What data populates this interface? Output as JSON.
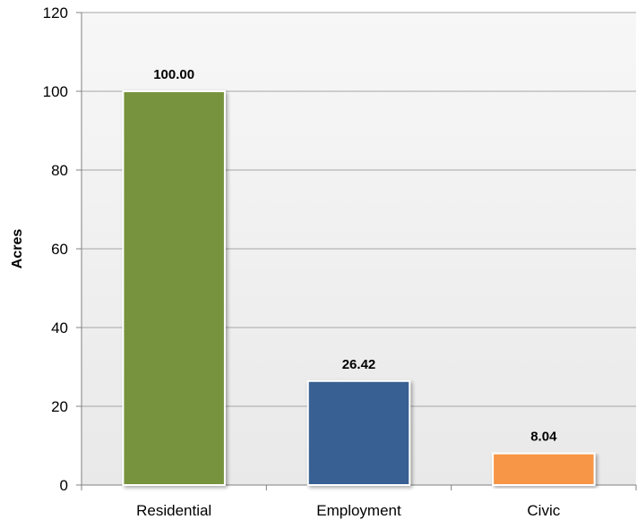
{
  "chart_data": {
    "type": "bar",
    "title": "",
    "xlabel": "",
    "ylabel": "Acres",
    "ylim": [
      0,
      120
    ],
    "yticks": [
      0,
      20,
      40,
      60,
      80,
      100,
      120
    ],
    "grid": true,
    "legend": "none",
    "categories": [
      "Residential",
      "Employment",
      "Civic"
    ],
    "values": [
      100.0,
      26.42,
      8.04
    ],
    "data_labels": [
      "100.00",
      "26.42",
      "8.04"
    ],
    "bar_colors": [
      "#77933C",
      "#376092",
      "#F79646"
    ],
    "plot_background": "#F2F2F2",
    "gridline_color": "#A6A6A6"
  }
}
